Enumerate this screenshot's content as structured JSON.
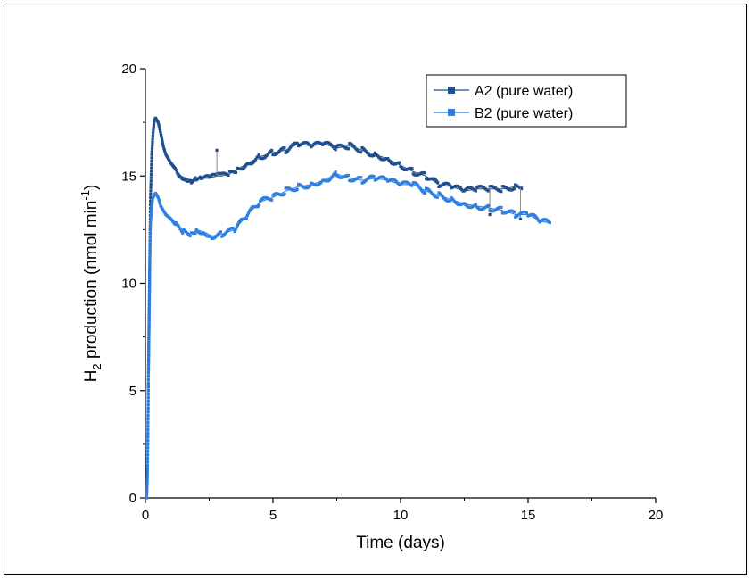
{
  "chart_data": {
    "type": "scatter",
    "title": "",
    "xlabel": "Time (days)",
    "ylabel": {
      "base": "H",
      "sub": "2",
      "mid": " production (nmol min",
      "sup": "-1",
      "end": ")"
    },
    "xlim": [
      0,
      20
    ],
    "ylim": [
      0,
      20
    ],
    "xticks": [
      "0",
      "5",
      "10",
      "15",
      "20"
    ],
    "yticks": [
      "0",
      "5",
      "10",
      "15",
      "20"
    ],
    "grid": false,
    "legend_position": "top-right",
    "series": [
      {
        "name": "A2 (pure water)",
        "color": "#1f4e8c",
        "points": [
          [
            0.05,
            0.2
          ],
          [
            0.08,
            1.5
          ],
          [
            0.1,
            3.5
          ],
          [
            0.12,
            6
          ],
          [
            0.15,
            9
          ],
          [
            0.18,
            12
          ],
          [
            0.2,
            14
          ],
          [
            0.25,
            16
          ],
          [
            0.3,
            17
          ],
          [
            0.35,
            17.6
          ],
          [
            0.4,
            17.7
          ],
          [
            0.5,
            17.5
          ],
          [
            0.6,
            17
          ],
          [
            0.7,
            16.4
          ],
          [
            0.8,
            16
          ],
          [
            0.9,
            15.8
          ],
          [
            1.0,
            15.6
          ],
          [
            1.2,
            15.3
          ],
          [
            1.4,
            15.0
          ],
          [
            1.6,
            14.9
          ],
          [
            1.8,
            14.8
          ],
          [
            2.0,
            14.9
          ],
          [
            2.2,
            14.9
          ],
          [
            2.5,
            14.9
          ],
          [
            2.8,
            15.0
          ],
          [
            3.0,
            15.0
          ],
          [
            3.3,
            15.1
          ],
          [
            3.6,
            15.3
          ],
          [
            4.0,
            15.6
          ],
          [
            4.5,
            15.9
          ],
          [
            5.0,
            16.1
          ],
          [
            5.5,
            16.2
          ],
          [
            6.0,
            16.5
          ],
          [
            6.5,
            16.4
          ],
          [
            7.0,
            16.5
          ],
          [
            7.5,
            16.3
          ],
          [
            8.0,
            16.4
          ],
          [
            8.5,
            16.2
          ],
          [
            9.0,
            16.0
          ],
          [
            9.5,
            15.8
          ],
          [
            10.0,
            15.5
          ],
          [
            10.5,
            15.2
          ],
          [
            11.0,
            15.0
          ],
          [
            11.5,
            14.6
          ],
          [
            12.0,
            14.5
          ],
          [
            12.5,
            14.3
          ],
          [
            13.0,
            14.4
          ],
          [
            13.5,
            14.4
          ],
          [
            14.0,
            14.4
          ],
          [
            14.5,
            14.5
          ],
          [
            14.8,
            14.5
          ]
        ],
        "spikes": [
          [
            2.8,
            16.2
          ],
          [
            13.5,
            13.2
          ],
          [
            14.7,
            13.0
          ]
        ]
      },
      {
        "name": "B2 (pure water)",
        "color": "#2f7fe0",
        "points": [
          [
            0.05,
            0.0
          ],
          [
            0.08,
            1.0
          ],
          [
            0.1,
            3.0
          ],
          [
            0.12,
            5.5
          ],
          [
            0.15,
            8.5
          ],
          [
            0.18,
            11.5
          ],
          [
            0.2,
            12.8
          ],
          [
            0.25,
            13.6
          ],
          [
            0.3,
            14.0
          ],
          [
            0.4,
            14.2
          ],
          [
            0.5,
            14.0
          ],
          [
            0.6,
            13.6
          ],
          [
            0.8,
            13.2
          ],
          [
            1.0,
            13.0
          ],
          [
            1.2,
            12.7
          ],
          [
            1.5,
            12.4
          ],
          [
            1.8,
            12.3
          ],
          [
            2.0,
            12.5
          ],
          [
            2.3,
            12.4
          ],
          [
            2.6,
            12.2
          ],
          [
            3.0,
            12.3
          ],
          [
            3.5,
            12.5
          ],
          [
            4.0,
            13.2
          ],
          [
            4.5,
            13.8
          ],
          [
            5.0,
            14.0
          ],
          [
            5.5,
            14.3
          ],
          [
            6.0,
            14.5
          ],
          [
            6.5,
            14.6
          ],
          [
            7.0,
            14.8
          ],
          [
            7.5,
            15.1
          ],
          [
            8.0,
            14.9
          ],
          [
            8.5,
            14.8
          ],
          [
            9.0,
            14.9
          ],
          [
            9.5,
            14.8
          ],
          [
            10.0,
            14.6
          ],
          [
            10.5,
            14.6
          ],
          [
            11.0,
            14.3
          ],
          [
            11.5,
            14.1
          ],
          [
            12.0,
            13.9
          ],
          [
            12.5,
            13.7
          ],
          [
            13.0,
            13.6
          ],
          [
            13.5,
            13.5
          ],
          [
            14.0,
            13.4
          ],
          [
            14.5,
            13.2
          ],
          [
            15.0,
            13.2
          ],
          [
            15.5,
            12.9
          ],
          [
            15.9,
            12.8
          ]
        ],
        "spikes": []
      }
    ]
  }
}
